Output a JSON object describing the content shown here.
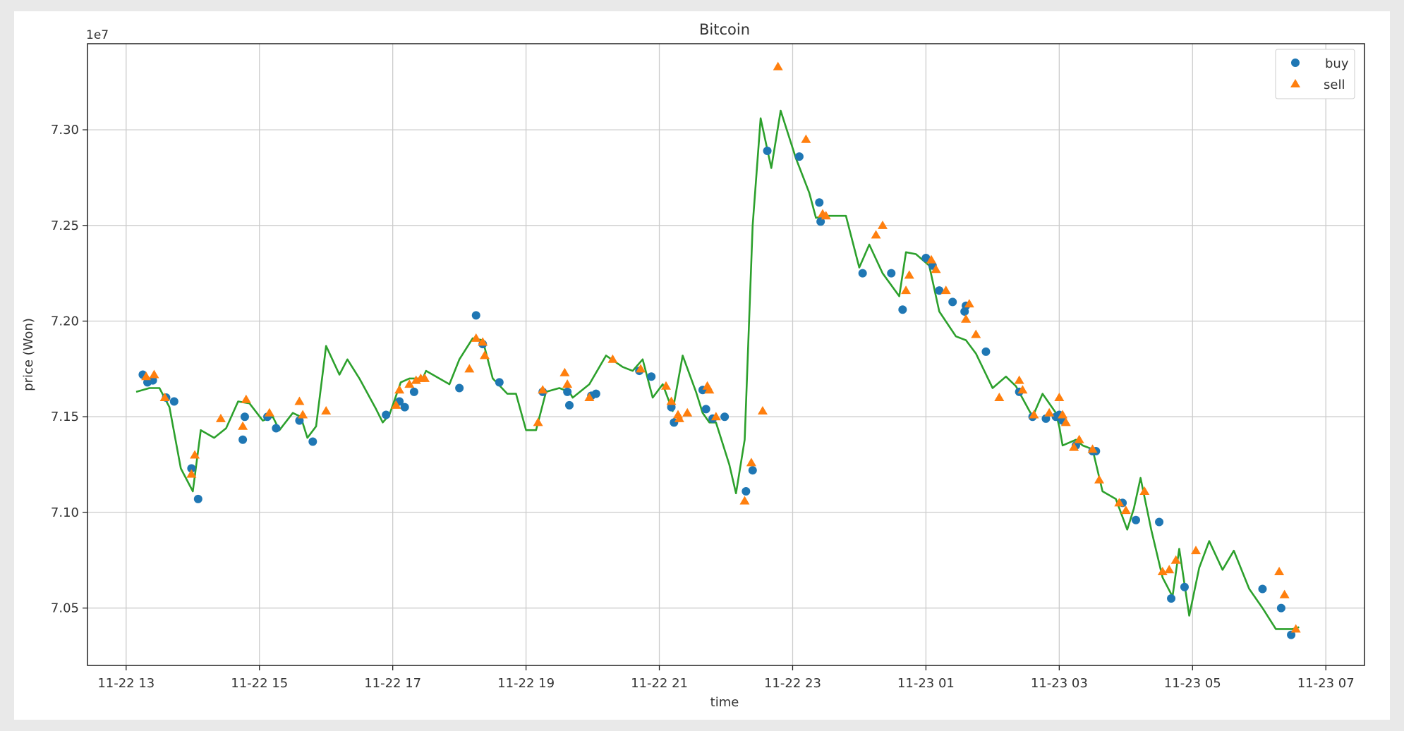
{
  "chart_data": {
    "type": "scatter",
    "title": "Bitcoin",
    "xlabel": "time",
    "ylabel": "price (Won)",
    "y_offset_label": "1e7",
    "x_unit": "hours after 11-22 13:00",
    "xlim": [
      -0.58,
      18.58
    ],
    "ylim": [
      7.02,
      7.345
    ],
    "x_ticks": [
      {
        "value": 0,
        "label": "11-22 13"
      },
      {
        "value": 2,
        "label": "11-22 15"
      },
      {
        "value": 4,
        "label": "11-22 17"
      },
      {
        "value": 6,
        "label": "11-22 19"
      },
      {
        "value": 8,
        "label": "11-22 21"
      },
      {
        "value": 10,
        "label": "11-22 23"
      },
      {
        "value": 12,
        "label": "11-23 01"
      },
      {
        "value": 14,
        "label": "11-23 03"
      },
      {
        "value": 16,
        "label": "11-23 05"
      },
      {
        "value": 18,
        "label": "11-23 07"
      }
    ],
    "y_ticks": [
      {
        "value": 7.05,
        "label": "7.05"
      },
      {
        "value": 7.1,
        "label": "7.10"
      },
      {
        "value": 7.15,
        "label": "7.15"
      },
      {
        "value": 7.2,
        "label": "7.20"
      },
      {
        "value": 7.25,
        "label": "7.25"
      },
      {
        "value": 7.3,
        "label": "7.30"
      }
    ],
    "grid": true,
    "legend_position": "top-right",
    "series": [
      {
        "name": "buy",
        "kind": "scatter",
        "marker": "circle",
        "color": "#1f77b4",
        "points": [
          [
            0.25,
            7.172
          ],
          [
            0.32,
            7.168
          ],
          [
            0.4,
            7.169
          ],
          [
            0.6,
            7.16
          ],
          [
            0.72,
            7.158
          ],
          [
            0.98,
            7.123
          ],
          [
            1.08,
            7.107
          ],
          [
            1.75,
            7.138
          ],
          [
            1.78,
            7.15
          ],
          [
            2.12,
            7.15
          ],
          [
            2.25,
            7.144
          ],
          [
            2.6,
            7.148
          ],
          [
            2.8,
            7.137
          ],
          [
            3.9,
            7.151
          ],
          [
            4.1,
            7.158
          ],
          [
            4.18,
            7.155
          ],
          [
            4.32,
            7.163
          ],
          [
            5.0,
            7.165
          ],
          [
            5.25,
            7.203
          ],
          [
            5.35,
            7.188
          ],
          [
            5.6,
            7.168
          ],
          [
            6.25,
            7.163
          ],
          [
            6.62,
            7.163
          ],
          [
            6.65,
            7.156
          ],
          [
            6.98,
            7.161
          ],
          [
            7.05,
            7.162
          ],
          [
            7.7,
            7.174
          ],
          [
            7.88,
            7.171
          ],
          [
            8.18,
            7.155
          ],
          [
            8.22,
            7.147
          ],
          [
            8.65,
            7.164
          ],
          [
            8.7,
            7.154
          ],
          [
            8.8,
            7.149
          ],
          [
            8.98,
            7.15
          ],
          [
            9.3,
            7.111
          ],
          [
            9.4,
            7.122
          ],
          [
            9.62,
            7.289
          ],
          [
            10.1,
            7.286
          ],
          [
            10.4,
            7.262
          ],
          [
            10.42,
            7.252
          ],
          [
            11.05,
            7.225
          ],
          [
            11.48,
            7.225
          ],
          [
            11.65,
            7.206
          ],
          [
            12.0,
            7.233
          ],
          [
            12.1,
            7.229
          ],
          [
            12.2,
            7.216
          ],
          [
            12.4,
            7.21
          ],
          [
            12.58,
            7.205
          ],
          [
            12.6,
            7.208
          ],
          [
            12.9,
            7.184
          ],
          [
            13.4,
            7.163
          ],
          [
            13.6,
            7.15
          ],
          [
            13.8,
            7.149
          ],
          [
            13.95,
            7.15
          ],
          [
            14.0,
            7.151
          ],
          [
            14.05,
            7.148
          ],
          [
            14.25,
            7.135
          ],
          [
            14.5,
            7.132
          ],
          [
            14.55,
            7.132
          ],
          [
            14.95,
            7.105
          ],
          [
            15.15,
            7.096
          ],
          [
            15.5,
            7.095
          ],
          [
            15.68,
            7.055
          ],
          [
            15.88,
            7.061
          ],
          [
            17.05,
            7.06
          ],
          [
            17.33,
            7.05
          ],
          [
            17.48,
            7.036
          ]
        ]
      },
      {
        "name": "sell",
        "kind": "scatter",
        "marker": "triangle",
        "color": "#ff7f0e",
        "points": [
          [
            0.3,
            7.171
          ],
          [
            0.42,
            7.172
          ],
          [
            0.58,
            7.16
          ],
          [
            0.98,
            7.12
          ],
          [
            1.03,
            7.13
          ],
          [
            1.42,
            7.149
          ],
          [
            1.75,
            7.145
          ],
          [
            1.8,
            7.159
          ],
          [
            2.15,
            7.152
          ],
          [
            2.6,
            7.158
          ],
          [
            2.65,
            7.151
          ],
          [
            3.0,
            7.153
          ],
          [
            4.05,
            7.156
          ],
          [
            4.1,
            7.164
          ],
          [
            4.25,
            7.167
          ],
          [
            4.35,
            7.169
          ],
          [
            4.42,
            7.17
          ],
          [
            4.48,
            7.17
          ],
          [
            5.15,
            7.175
          ],
          [
            5.25,
            7.191
          ],
          [
            5.35,
            7.189
          ],
          [
            5.38,
            7.182
          ],
          [
            6.18,
            7.147
          ],
          [
            6.25,
            7.164
          ],
          [
            6.58,
            7.173
          ],
          [
            6.62,
            7.167
          ],
          [
            6.95,
            7.16
          ],
          [
            7.3,
            7.18
          ],
          [
            7.72,
            7.175
          ],
          [
            8.1,
            7.166
          ],
          [
            8.18,
            7.158
          ],
          [
            8.28,
            7.151
          ],
          [
            8.3,
            7.149
          ],
          [
            8.42,
            7.152
          ],
          [
            8.72,
            7.166
          ],
          [
            8.75,
            7.164
          ],
          [
            8.85,
            7.15
          ],
          [
            9.28,
            7.106
          ],
          [
            9.38,
            7.126
          ],
          [
            9.55,
            7.153
          ],
          [
            9.78,
            7.333
          ],
          [
            10.2,
            7.295
          ],
          [
            10.45,
            7.256
          ],
          [
            10.5,
            7.255
          ],
          [
            11.25,
            7.245
          ],
          [
            11.35,
            7.25
          ],
          [
            11.7,
            7.216
          ],
          [
            11.75,
            7.224
          ],
          [
            12.08,
            7.232
          ],
          [
            12.15,
            7.227
          ],
          [
            12.3,
            7.216
          ],
          [
            12.6,
            7.201
          ],
          [
            12.65,
            7.209
          ],
          [
            12.75,
            7.193
          ],
          [
            13.1,
            7.16
          ],
          [
            13.4,
            7.169
          ],
          [
            13.45,
            7.164
          ],
          [
            13.62,
            7.151
          ],
          [
            13.85,
            7.152
          ],
          [
            14.0,
            7.16
          ],
          [
            14.05,
            7.151
          ],
          [
            14.1,
            7.147
          ],
          [
            14.22,
            7.134
          ],
          [
            14.3,
            7.138
          ],
          [
            14.5,
            7.133
          ],
          [
            14.6,
            7.117
          ],
          [
            14.9,
            7.105
          ],
          [
            15.0,
            7.101
          ],
          [
            15.28,
            7.111
          ],
          [
            15.55,
            7.069
          ],
          [
            15.65,
            7.07
          ],
          [
            15.75,
            7.075
          ],
          [
            16.05,
            7.08
          ],
          [
            17.3,
            7.069
          ],
          [
            17.38,
            7.057
          ],
          [
            17.55,
            7.039
          ]
        ]
      },
      {
        "name": "",
        "kind": "line",
        "color": "#2ca02c",
        "points": [
          [
            0.15,
            7.163
          ],
          [
            0.35,
            7.165
          ],
          [
            0.5,
            7.165
          ],
          [
            0.65,
            7.155
          ],
          [
            0.82,
            7.123
          ],
          [
            1.0,
            7.111
          ],
          [
            1.12,
            7.143
          ],
          [
            1.32,
            7.139
          ],
          [
            1.5,
            7.144
          ],
          [
            1.68,
            7.158
          ],
          [
            1.85,
            7.157
          ],
          [
            2.05,
            7.148
          ],
          [
            2.2,
            7.15
          ],
          [
            2.3,
            7.143
          ],
          [
            2.5,
            7.152
          ],
          [
            2.62,
            7.15
          ],
          [
            2.72,
            7.139
          ],
          [
            2.85,
            7.145
          ],
          [
            3.0,
            7.187
          ],
          [
            3.2,
            7.172
          ],
          [
            3.32,
            7.18
          ],
          [
            3.5,
            7.17
          ],
          [
            3.75,
            7.154
          ],
          [
            3.85,
            7.147
          ],
          [
            3.95,
            7.151
          ],
          [
            4.12,
            7.168
          ],
          [
            4.25,
            7.17
          ],
          [
            4.45,
            7.17
          ],
          [
            4.5,
            7.174
          ],
          [
            4.85,
            7.167
          ],
          [
            5.0,
            7.18
          ],
          [
            5.2,
            7.191
          ],
          [
            5.35,
            7.19
          ],
          [
            5.5,
            7.17
          ],
          [
            5.72,
            7.162
          ],
          [
            5.85,
            7.162
          ],
          [
            6.0,
            7.143
          ],
          [
            6.15,
            7.143
          ],
          [
            6.3,
            7.163
          ],
          [
            6.5,
            7.165
          ],
          [
            6.65,
            7.163
          ],
          [
            6.7,
            7.16
          ],
          [
            6.95,
            7.167
          ],
          [
            7.2,
            7.182
          ],
          [
            7.45,
            7.176
          ],
          [
            7.6,
            7.174
          ],
          [
            7.75,
            7.18
          ],
          [
            7.9,
            7.16
          ],
          [
            8.05,
            7.167
          ],
          [
            8.2,
            7.153
          ],
          [
            8.35,
            7.182
          ],
          [
            8.55,
            7.163
          ],
          [
            8.65,
            7.152
          ],
          [
            8.75,
            7.147
          ],
          [
            8.85,
            7.147
          ],
          [
            9.05,
            7.125
          ],
          [
            9.15,
            7.11
          ],
          [
            9.28,
            7.138
          ],
          [
            9.4,
            7.25
          ],
          [
            9.52,
            7.306
          ],
          [
            9.68,
            7.28
          ],
          [
            9.82,
            7.31
          ],
          [
            10.05,
            7.285
          ],
          [
            10.25,
            7.267
          ],
          [
            10.35,
            7.254
          ],
          [
            10.5,
            7.255
          ],
          [
            10.8,
            7.255
          ],
          [
            11.0,
            7.228
          ],
          [
            11.15,
            7.24
          ],
          [
            11.35,
            7.225
          ],
          [
            11.6,
            7.213
          ],
          [
            11.7,
            7.236
          ],
          [
            11.85,
            7.235
          ],
          [
            12.05,
            7.229
          ],
          [
            12.2,
            7.205
          ],
          [
            12.45,
            7.192
          ],
          [
            12.6,
            7.19
          ],
          [
            12.75,
            7.183
          ],
          [
            13.0,
            7.165
          ],
          [
            13.2,
            7.171
          ],
          [
            13.35,
            7.166
          ],
          [
            13.6,
            7.15
          ],
          [
            13.75,
            7.162
          ],
          [
            13.95,
            7.152
          ],
          [
            14.0,
            7.145
          ],
          [
            14.05,
            7.135
          ],
          [
            14.25,
            7.138
          ],
          [
            14.35,
            7.135
          ],
          [
            14.5,
            7.133
          ],
          [
            14.65,
            7.111
          ],
          [
            14.85,
            7.107
          ],
          [
            15.02,
            7.091
          ],
          [
            15.12,
            7.102
          ],
          [
            15.22,
            7.118
          ],
          [
            15.38,
            7.091
          ],
          [
            15.55,
            7.066
          ],
          [
            15.7,
            7.056
          ],
          [
            15.8,
            7.081
          ],
          [
            15.95,
            7.046
          ],
          [
            16.1,
            7.071
          ],
          [
            16.25,
            7.085
          ],
          [
            16.45,
            7.07
          ],
          [
            16.62,
            7.08
          ],
          [
            16.85,
            7.06
          ],
          [
            17.05,
            7.05
          ],
          [
            17.25,
            7.039
          ],
          [
            17.5,
            7.039
          ],
          [
            17.6,
            7.04
          ]
        ]
      }
    ]
  }
}
